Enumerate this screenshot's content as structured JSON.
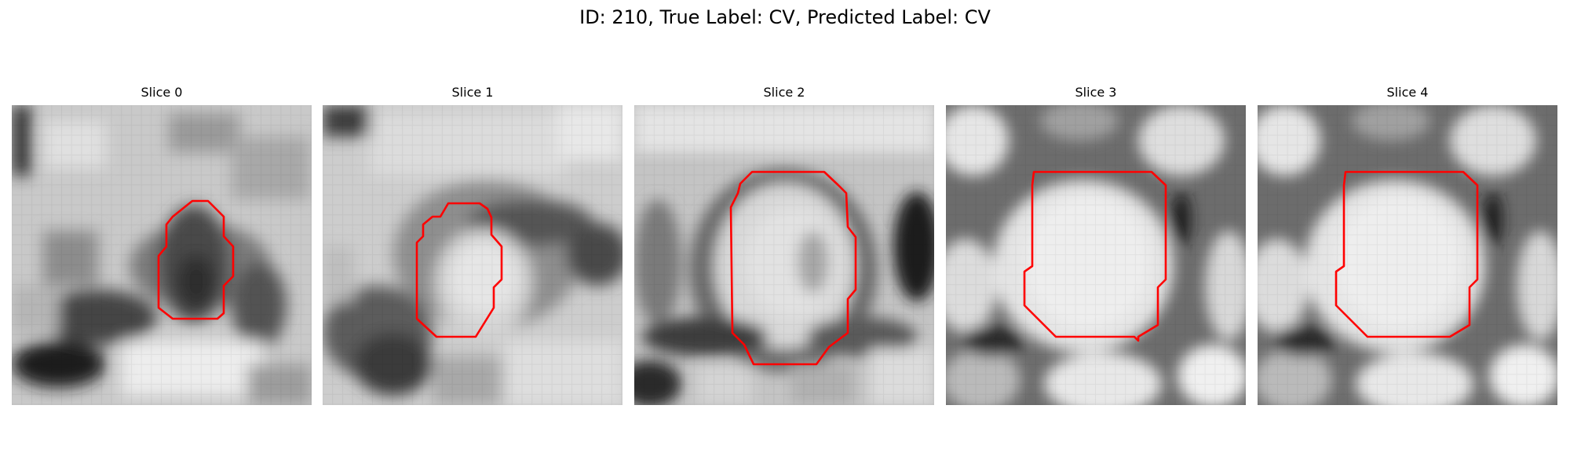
{
  "figure": {
    "title": "ID: 210, True Label: CV, Predicted Label: CV"
  },
  "contour_color": "#ff0000",
  "panels": [
    {
      "title": "Slice 0"
    },
    {
      "title": "Slice 1"
    },
    {
      "title": "Slice 2"
    },
    {
      "title": "Slice 3"
    },
    {
      "title": "Slice 4"
    }
  ]
}
